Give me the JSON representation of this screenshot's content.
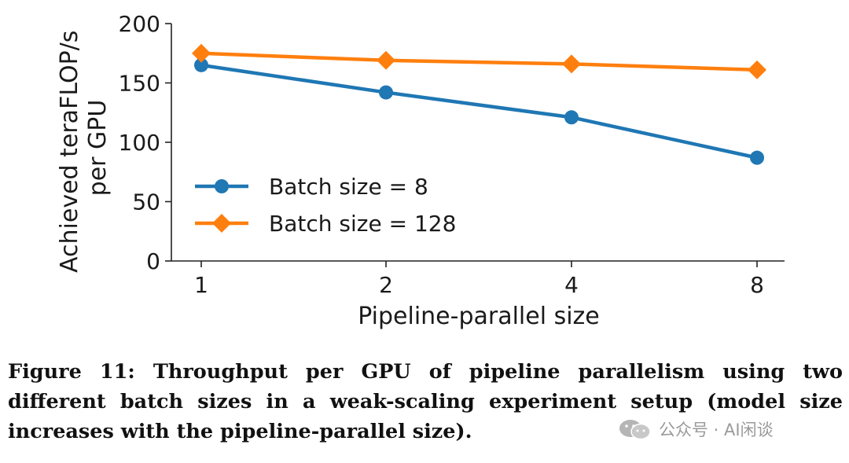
{
  "chart_data": {
    "type": "line",
    "xlabel": "Pipeline-parallel size",
    "ylabel_lines": [
      "Achieved teraFLOP/s",
      "per GPU"
    ],
    "categories": [
      "1",
      "2",
      "4",
      "8"
    ],
    "ylim": [
      0,
      200
    ],
    "yticks": [
      "0",
      "50",
      "100",
      "150",
      "200"
    ],
    "grid": false,
    "legend_position": "lower-left",
    "series": [
      {
        "name": "Batch size = 8",
        "values": [
          165,
          142,
          121,
          87
        ],
        "color": "#1f77b4",
        "marker": "circle"
      },
      {
        "name": "Batch size = 128",
        "values": [
          175,
          169,
          166,
          161
        ],
        "color": "#ff7f0e",
        "marker": "diamond"
      }
    ]
  },
  "caption": "Figure 11: Throughput per GPU of pipeline parallelism using two different batch sizes in a weak-scaling experiment setup (model size increases with the pipeline-parallel size).",
  "watermark": {
    "text": "公众号 · AI闲谈",
    "icon": "wechat-icon"
  }
}
